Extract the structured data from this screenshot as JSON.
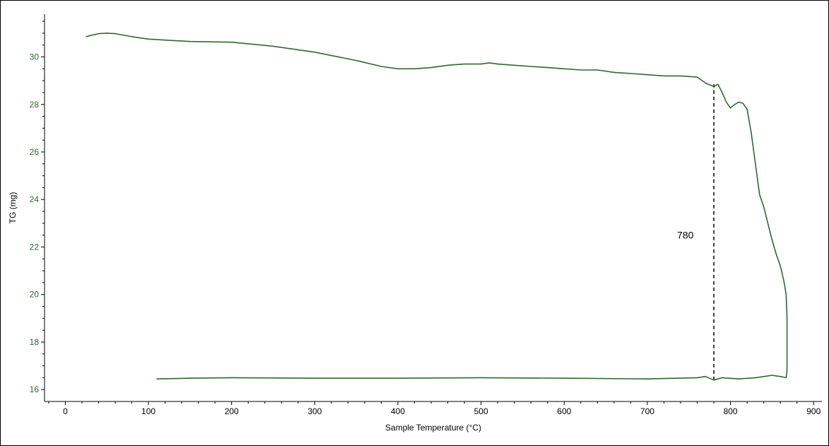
{
  "chart_data": {
    "type": "line",
    "title": "",
    "xlabel": "Sample Temperature (°C)",
    "ylabel": "TG (mg)",
    "xlim": [
      -25,
      910
    ],
    "ylim": [
      15.5,
      31.8
    ],
    "x_ticks": [
      0,
      100,
      200,
      300,
      400,
      500,
      600,
      700,
      800,
      900
    ],
    "y_ticks": [
      16,
      18,
      20,
      22,
      24,
      26,
      28,
      30
    ],
    "grid": false,
    "line_color": "#2d6a2d",
    "series": [
      {
        "values": [
          [
            25,
            30.85
          ],
          [
            30,
            30.9
          ],
          [
            40,
            30.98
          ],
          [
            50,
            31.0
          ],
          [
            60,
            30.98
          ],
          [
            80,
            30.85
          ],
          [
            100,
            30.75
          ],
          [
            150,
            30.65
          ],
          [
            200,
            30.62
          ],
          [
            250,
            30.45
          ],
          [
            300,
            30.2
          ],
          [
            350,
            29.85
          ],
          [
            380,
            29.6
          ],
          [
            400,
            29.5
          ],
          [
            420,
            29.5
          ],
          [
            440,
            29.55
          ],
          [
            460,
            29.65
          ],
          [
            480,
            29.7
          ],
          [
            500,
            29.7
          ],
          [
            510,
            29.75
          ],
          [
            520,
            29.7
          ],
          [
            540,
            29.65
          ],
          [
            560,
            29.6
          ],
          [
            580,
            29.55
          ],
          [
            600,
            29.5
          ],
          [
            620,
            29.45
          ],
          [
            640,
            29.45
          ],
          [
            660,
            29.35
          ],
          [
            680,
            29.3
          ],
          [
            700,
            29.25
          ],
          [
            720,
            29.2
          ],
          [
            740,
            29.2
          ],
          [
            760,
            29.15
          ],
          [
            770,
            28.9
          ],
          [
            780,
            28.75
          ],
          [
            785,
            28.85
          ],
          [
            790,
            28.5
          ],
          [
            795,
            28.1
          ],
          [
            800,
            27.85
          ],
          [
            805,
            28.0
          ],
          [
            810,
            28.1
          ],
          [
            815,
            28.05
          ],
          [
            820,
            27.8
          ],
          [
            825,
            26.8
          ],
          [
            830,
            25.5
          ],
          [
            835,
            24.2
          ],
          [
            840,
            23.7
          ],
          [
            845,
            23.0
          ],
          [
            850,
            22.3
          ],
          [
            855,
            21.7
          ],
          [
            860,
            21.2
          ],
          [
            864,
            20.6
          ],
          [
            867,
            20.0
          ],
          [
            868,
            19.0
          ],
          [
            868,
            17.5
          ],
          [
            868,
            16.8
          ],
          [
            867,
            16.5
          ],
          [
            860,
            16.55
          ],
          [
            850,
            16.6
          ],
          [
            830,
            16.5
          ],
          [
            810,
            16.45
          ],
          [
            790,
            16.5
          ],
          [
            780,
            16.4
          ],
          [
            770,
            16.55
          ],
          [
            760,
            16.5
          ],
          [
            700,
            16.45
          ],
          [
            600,
            16.48
          ],
          [
            500,
            16.5
          ],
          [
            400,
            16.48
          ],
          [
            300,
            16.48
          ],
          [
            200,
            16.5
          ],
          [
            150,
            16.48
          ],
          [
            110,
            16.45
          ]
        ]
      }
    ],
    "annotations": [
      {
        "text": "780",
        "x": 780,
        "line_from_y": 16.4,
        "line_to_y": 28.85
      }
    ]
  }
}
